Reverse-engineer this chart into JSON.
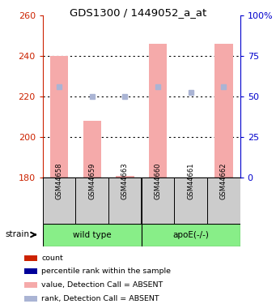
{
  "title": "GDS1300 / 1449052_a_at",
  "samples": [
    "GSM44658",
    "GSM44659",
    "GSM44663",
    "GSM44660",
    "GSM44661",
    "GSM44662"
  ],
  "group_label_display": [
    "wild type",
    "apoE(-/-)"
  ],
  "bar_values": [
    240,
    208,
    181,
    246,
    180,
    246
  ],
  "bar_bottom": 180,
  "rank_values": [
    225,
    220,
    220,
    225,
    222,
    225
  ],
  "ylim_left": [
    180,
    260
  ],
  "ylim_right": [
    0,
    100
  ],
  "yticks_left": [
    180,
    200,
    220,
    240,
    260
  ],
  "yticks_right": [
    0,
    25,
    50,
    75,
    100
  ],
  "ytick_right_labels": [
    "0",
    "25",
    "50",
    "75",
    "100%"
  ],
  "bar_color": "#f5aaaa",
  "rank_color": "#aab4d4",
  "count_color": "#cc0000",
  "percentile_color": "#000099",
  "left_tick_color": "#cc2200",
  "right_tick_color": "#0000cc",
  "strain_label": "strain",
  "group_bg_color": "#88ee88",
  "sample_bg_color": "#cccccc",
  "grid_dotted_at": [
    200,
    220,
    240
  ],
  "legend_items": [
    {
      "color": "#cc2200",
      "label": "count"
    },
    {
      "color": "#000099",
      "label": "percentile rank within the sample"
    },
    {
      "color": "#f5aaaa",
      "label": "value, Detection Call = ABSENT"
    },
    {
      "color": "#aab4d4",
      "label": "rank, Detection Call = ABSENT"
    }
  ],
  "bar_width": 0.55
}
